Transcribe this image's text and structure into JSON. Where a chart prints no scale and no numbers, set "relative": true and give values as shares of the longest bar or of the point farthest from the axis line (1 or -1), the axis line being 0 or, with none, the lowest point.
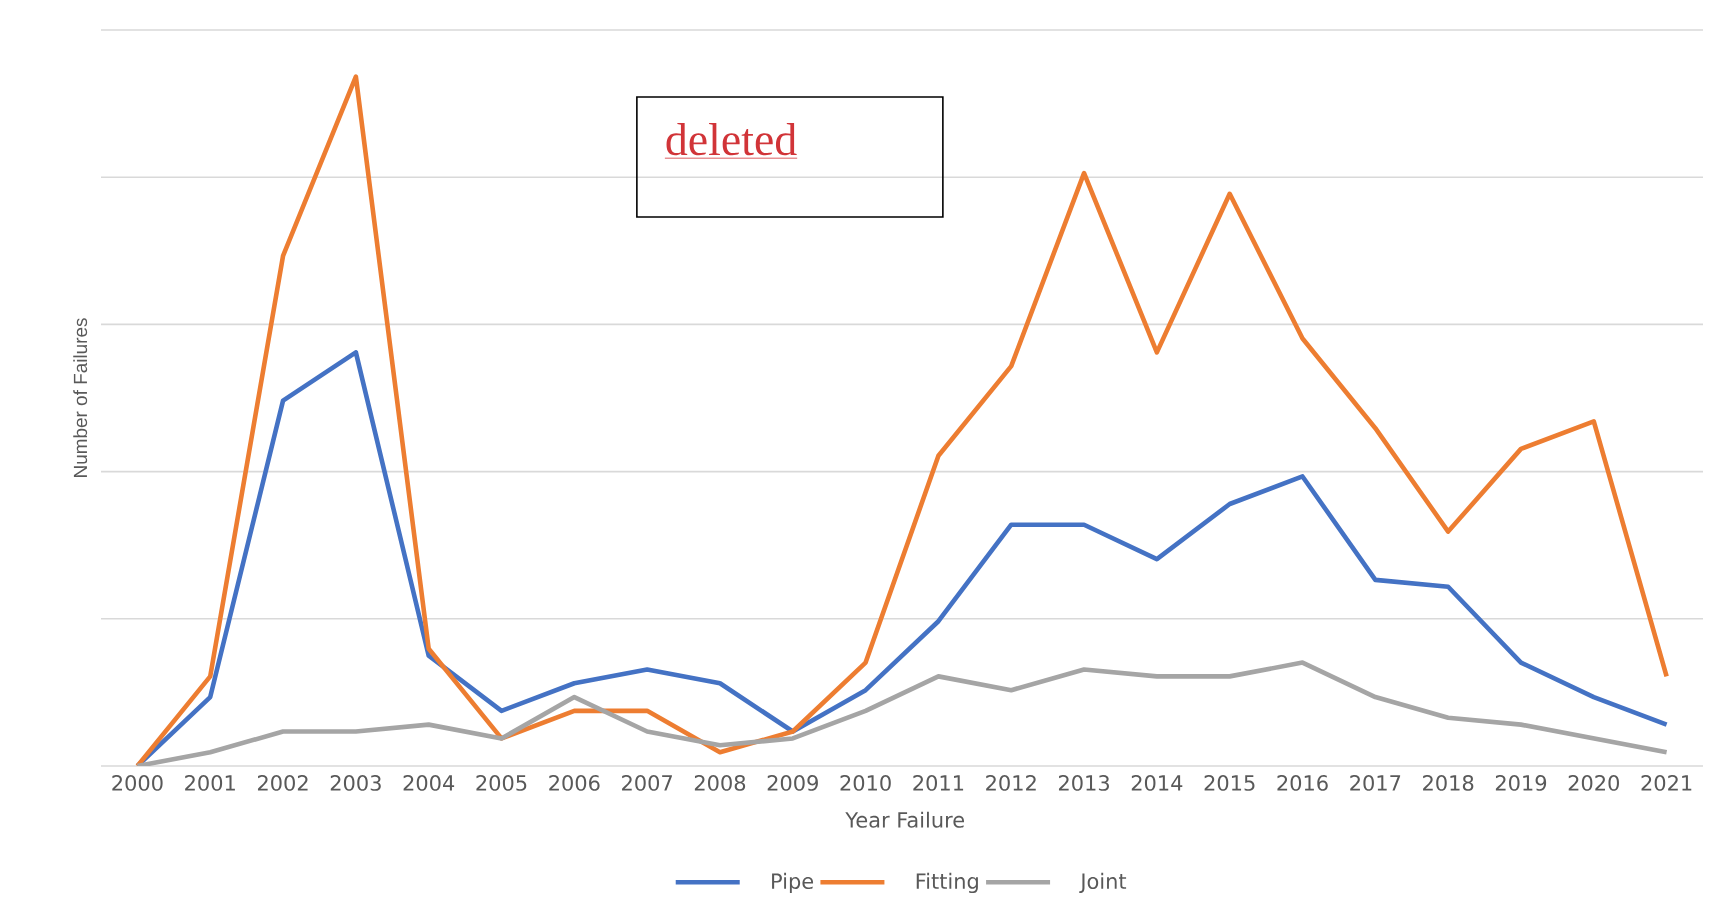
{
  "chart_data": {
    "type": "line",
    "xlabel": "Year Failure",
    "ylabel": "Number of Failures",
    "annotations": [
      "deleted"
    ],
    "relative": true,
    "categories": [
      "2000",
      "2001",
      "2002",
      "2003",
      "2004",
      "2005",
      "2006",
      "2007",
      "2008",
      "2009",
      "2010",
      "2011",
      "2012",
      "2013",
      "2014",
      "2015",
      "2016",
      "2017",
      "2018",
      "2019",
      "2020",
      "2021"
    ],
    "series": [
      {
        "name": "Pipe",
        "color": "#4472c4",
        "values": [
          0,
          0.1,
          0.53,
          0.6,
          0.16,
          0.08,
          0.12,
          0.14,
          0.12,
          0.05,
          0.11,
          0.21,
          0.35,
          0.35,
          0.3,
          0.38,
          0.42,
          0.27,
          0.26,
          0.15,
          0.1,
          0.06
        ]
      },
      {
        "name": "Fitting",
        "color": "#ed7d31",
        "values": [
          0,
          0.13,
          0.74,
          1,
          0.17,
          0.04,
          0.08,
          0.08,
          0.02,
          0.05,
          0.15,
          0.45,
          0.58,
          0.86,
          0.6,
          0.83,
          0.62,
          0.49,
          0.34,
          0.46,
          0.5,
          0.13
        ]
      },
      {
        "name": "Joint",
        "color": "#a5a5a5",
        "values": [
          0,
          0.02,
          0.05,
          0.05,
          0.06,
          0.04,
          0.1,
          0.05,
          0.03,
          0.04,
          0.08,
          0.13,
          0.11,
          0.14,
          0.13,
          0.13,
          0.15,
          0.1,
          0.07,
          0.06,
          0.04,
          0.02
        ]
      }
    ],
    "grid": "y",
    "legend": "bottom",
    "line_style": "solid"
  }
}
